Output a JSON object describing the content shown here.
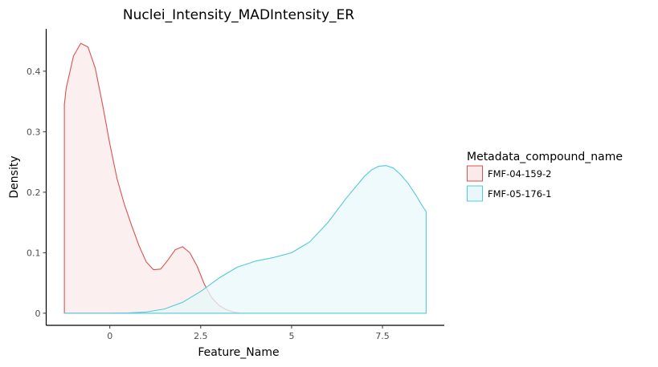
{
  "chart_data": {
    "type": "area",
    "title": "Nuclei_Intensity_MADIntensity_ER",
    "xlabel": "Feature_Name",
    "ylabel": "Density",
    "xlim": [
      -1.75,
      9.2
    ],
    "ylim": [
      -0.02,
      0.47
    ],
    "x_ticks": [
      0,
      2.5,
      5,
      7.5
    ],
    "x_tick_labels": [
      "0",
      "2.5",
      "5",
      "7.5"
    ],
    "y_ticks": [
      0,
      0.1,
      0.2,
      0.3,
      0.4
    ],
    "y_tick_labels": [
      "0",
      "0.1",
      "0.2",
      "0.3",
      "0.4"
    ],
    "grid": false,
    "legend": {
      "title": "Metadata_compound_name",
      "placement": "right"
    },
    "series": [
      {
        "name": "FMF-04-159-2",
        "line_color": "#d9534f",
        "fill_color": "#fbeaea",
        "x": [
          -1.25,
          -1.2,
          -1.0,
          -0.8,
          -0.6,
          -0.4,
          -0.2,
          0.0,
          0.2,
          0.4,
          0.6,
          0.8,
          1.0,
          1.2,
          1.4,
          1.6,
          1.8,
          2.0,
          2.2,
          2.4,
          2.6,
          2.8,
          3.0,
          3.2,
          3.4,
          3.6,
          4.0,
          5.0,
          6.0,
          7.0,
          8.0,
          8.7
        ],
        "y": [
          0.345,
          0.372,
          0.425,
          0.446,
          0.44,
          0.405,
          0.345,
          0.28,
          0.222,
          0.18,
          0.145,
          0.112,
          0.085,
          0.072,
          0.073,
          0.088,
          0.105,
          0.11,
          0.1,
          0.078,
          0.048,
          0.026,
          0.013,
          0.006,
          0.002,
          0.0,
          0.0,
          0.0,
          0.0,
          0.0,
          0.0,
          0.0
        ]
      },
      {
        "name": "FMF-05-176-1",
        "line_color": "#56c9d8",
        "fill_color": "#e8f8fa",
        "x": [
          -1.25,
          -1.0,
          0.0,
          0.5,
          1.0,
          1.5,
          2.0,
          2.5,
          3.0,
          3.5,
          4.0,
          4.5,
          5.0,
          5.5,
          6.0,
          6.5,
          7.0,
          7.2,
          7.4,
          7.6,
          7.8,
          8.0,
          8.2,
          8.4,
          8.6,
          8.7
        ],
        "y": [
          0.0,
          0.0,
          0.0,
          0.0005,
          0.002,
          0.007,
          0.018,
          0.036,
          0.058,
          0.076,
          0.086,
          0.092,
          0.1,
          0.118,
          0.15,
          0.19,
          0.226,
          0.237,
          0.243,
          0.244,
          0.24,
          0.229,
          0.215,
          0.197,
          0.177,
          0.168
        ]
      }
    ]
  }
}
